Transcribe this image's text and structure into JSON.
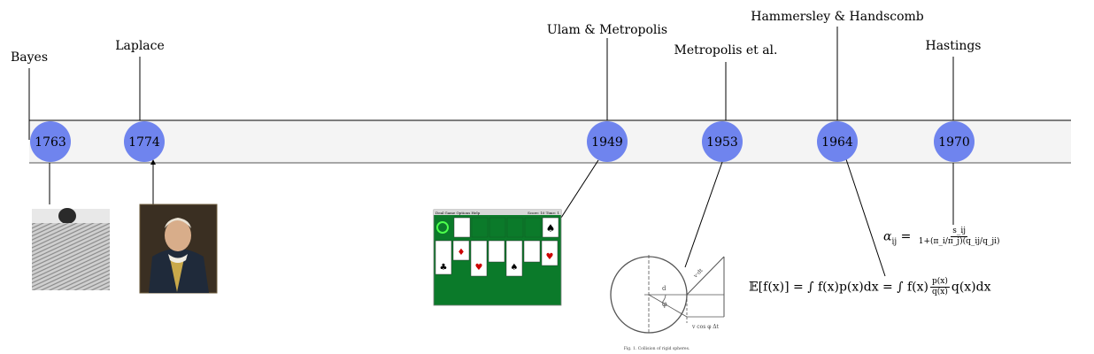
{
  "colors": {
    "band_fill": "#f4f4f4",
    "band_stroke": "#555555",
    "node_fill": "#6f84ee",
    "line": "#000000"
  },
  "events": [
    {
      "year": "1763",
      "name": "Bayes"
    },
    {
      "year": "1774",
      "name": "Laplace"
    },
    {
      "year": "1949",
      "name": "Ulam & Metropolis"
    },
    {
      "year": "1953",
      "name": "Metropolis et al."
    },
    {
      "year": "1964",
      "name": "Hammersley & Handscomb"
    },
    {
      "year": "1970",
      "name": "Hastings"
    }
  ],
  "pictures": {
    "bayes": "portrait-bayes",
    "laplace": "portrait-laplace",
    "solitaire": "solitaire-card-game",
    "spheres": "diagram-collision-of-rigid-spheres"
  },
  "solitaire_menu": [
    "Deal",
    "Game",
    "Options",
    "Help"
  ],
  "solitaire_status": "Score: 10  Time: 1",
  "spheres_caption": "Fig. 1. Collision of rigid spheres.",
  "spheres_label_d": "d",
  "spheres_label_phi": "φ",
  "spheres_label_vdt": "v·dt",
  "spheres_label_bottom": "v cos φ Δt",
  "formulas": {
    "importance_lhs": "𝔼[f(x)] = ∫ f(x)p(x)dx = ∫ f(x)",
    "importance_num": "p(x)",
    "importance_den": "q(x)",
    "importance_rhs": "q(x)dx",
    "hastings_lhs": "α",
    "hastings_sub": "ij",
    "hastings_eq": " = ",
    "hastings_num": "s_ij",
    "hastings_den": "1+(π_i/π_j)(q_ij/q_ji)"
  }
}
